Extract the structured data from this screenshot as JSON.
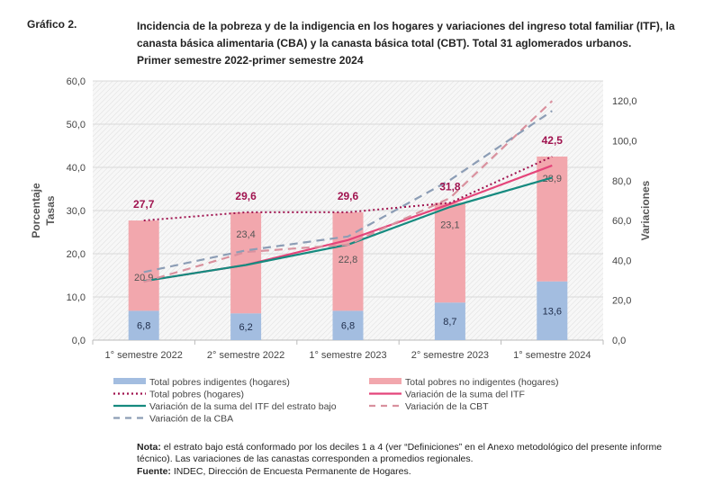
{
  "figure_number": "Gráfico 2.",
  "title_lines": [
    "Incidencia de la pobreza y de la indigencia en los hogares y variaciones del ingreso total familiar (ITF), la",
    "canasta básica alimentaria (CBA) y la canasta básica total (CBT). Total 31 aglomerados urbanos.",
    "Primer semestre 2022-primer semestre 2024"
  ],
  "chart_data": {
    "type": "bar+line",
    "categories": [
      "1° semestre 2022",
      "2° semestre 2022",
      "1° semestre 2023",
      "2° semestre 2023",
      "1° semestre 2024"
    ],
    "ylabel_left": [
      "Porcentaje",
      "Tasas"
    ],
    "ylabel_right": "Variaciones",
    "ylim_left": [
      0,
      60
    ],
    "yticks_left": [
      "0,0",
      "10,0",
      "20,0",
      "30,0",
      "40,0",
      "50,0",
      "60,0"
    ],
    "ylim_right": [
      0,
      130
    ],
    "yticks_right": [
      "0,0",
      "20,0",
      "40,0",
      "60,0",
      "80,0",
      "100,0",
      "120,0"
    ],
    "grid": true,
    "legend_position": "bottom",
    "bars": [
      {
        "name": "Total pobres indigentes (hogares)",
        "color": "#a3bde0",
        "values": [
          6.8,
          6.2,
          6.8,
          8.7,
          13.6
        ],
        "labels": [
          "6,8",
          "6,2",
          "6,8",
          "8,7",
          "13,6"
        ]
      },
      {
        "name": "Total pobres no indigentes (hogares)",
        "color": "#f2a7ad",
        "values": [
          20.9,
          23.4,
          22.8,
          23.1,
          28.9
        ],
        "labels": [
          "20,9",
          "23,4",
          "22,8",
          "23,1",
          "28,9"
        ]
      }
    ],
    "total": {
      "name": "Total pobres (hogares)",
      "color": "#a0134f",
      "axis": "left",
      "values": [
        27.7,
        29.6,
        29.6,
        31.8,
        42.5
      ],
      "labels": [
        "27,7",
        "29,6",
        "29,6",
        "31,8",
        "42,5"
      ]
    },
    "lines": [
      {
        "name": "Variación de la suma del ITF",
        "color": "#e4457a",
        "dash": "solid",
        "axis": "right",
        "values": [
          29.6,
          37.7,
          50.2,
          68.3,
          87.6
        ]
      },
      {
        "name": "Variación de la suma del ITF del estrato bajo",
        "color": "#168a7f",
        "dash": "solid",
        "axis": "right",
        "values": [
          29.6,
          37.7,
          47.9,
          66.8,
          81.5
        ]
      },
      {
        "name": "Variación de la CBT",
        "color": "#d9919e",
        "dash": "dashed",
        "axis": "right",
        "values": [
          29.2,
          44.2,
          47.9,
          71.3,
          120
        ]
      },
      {
        "name": "Variación de la CBA",
        "color": "#8c9db5",
        "dash": "dashed",
        "axis": "right",
        "values": [
          34.1,
          45,
          52,
          80.3,
          115
        ]
      }
    ]
  },
  "note": {
    "label": "Nota:",
    "text": " el estrato bajo está conformado por los deciles 1 a 4 (ver “Definiciones” en el Anexo metodológico del presente informe técnico). Las variaciones de las canastas corresponden a promedios regionales."
  },
  "source": {
    "label": "Fuente:",
    "text": " INDEC, Dirección de Encuesta Permanente de Hogares."
  }
}
